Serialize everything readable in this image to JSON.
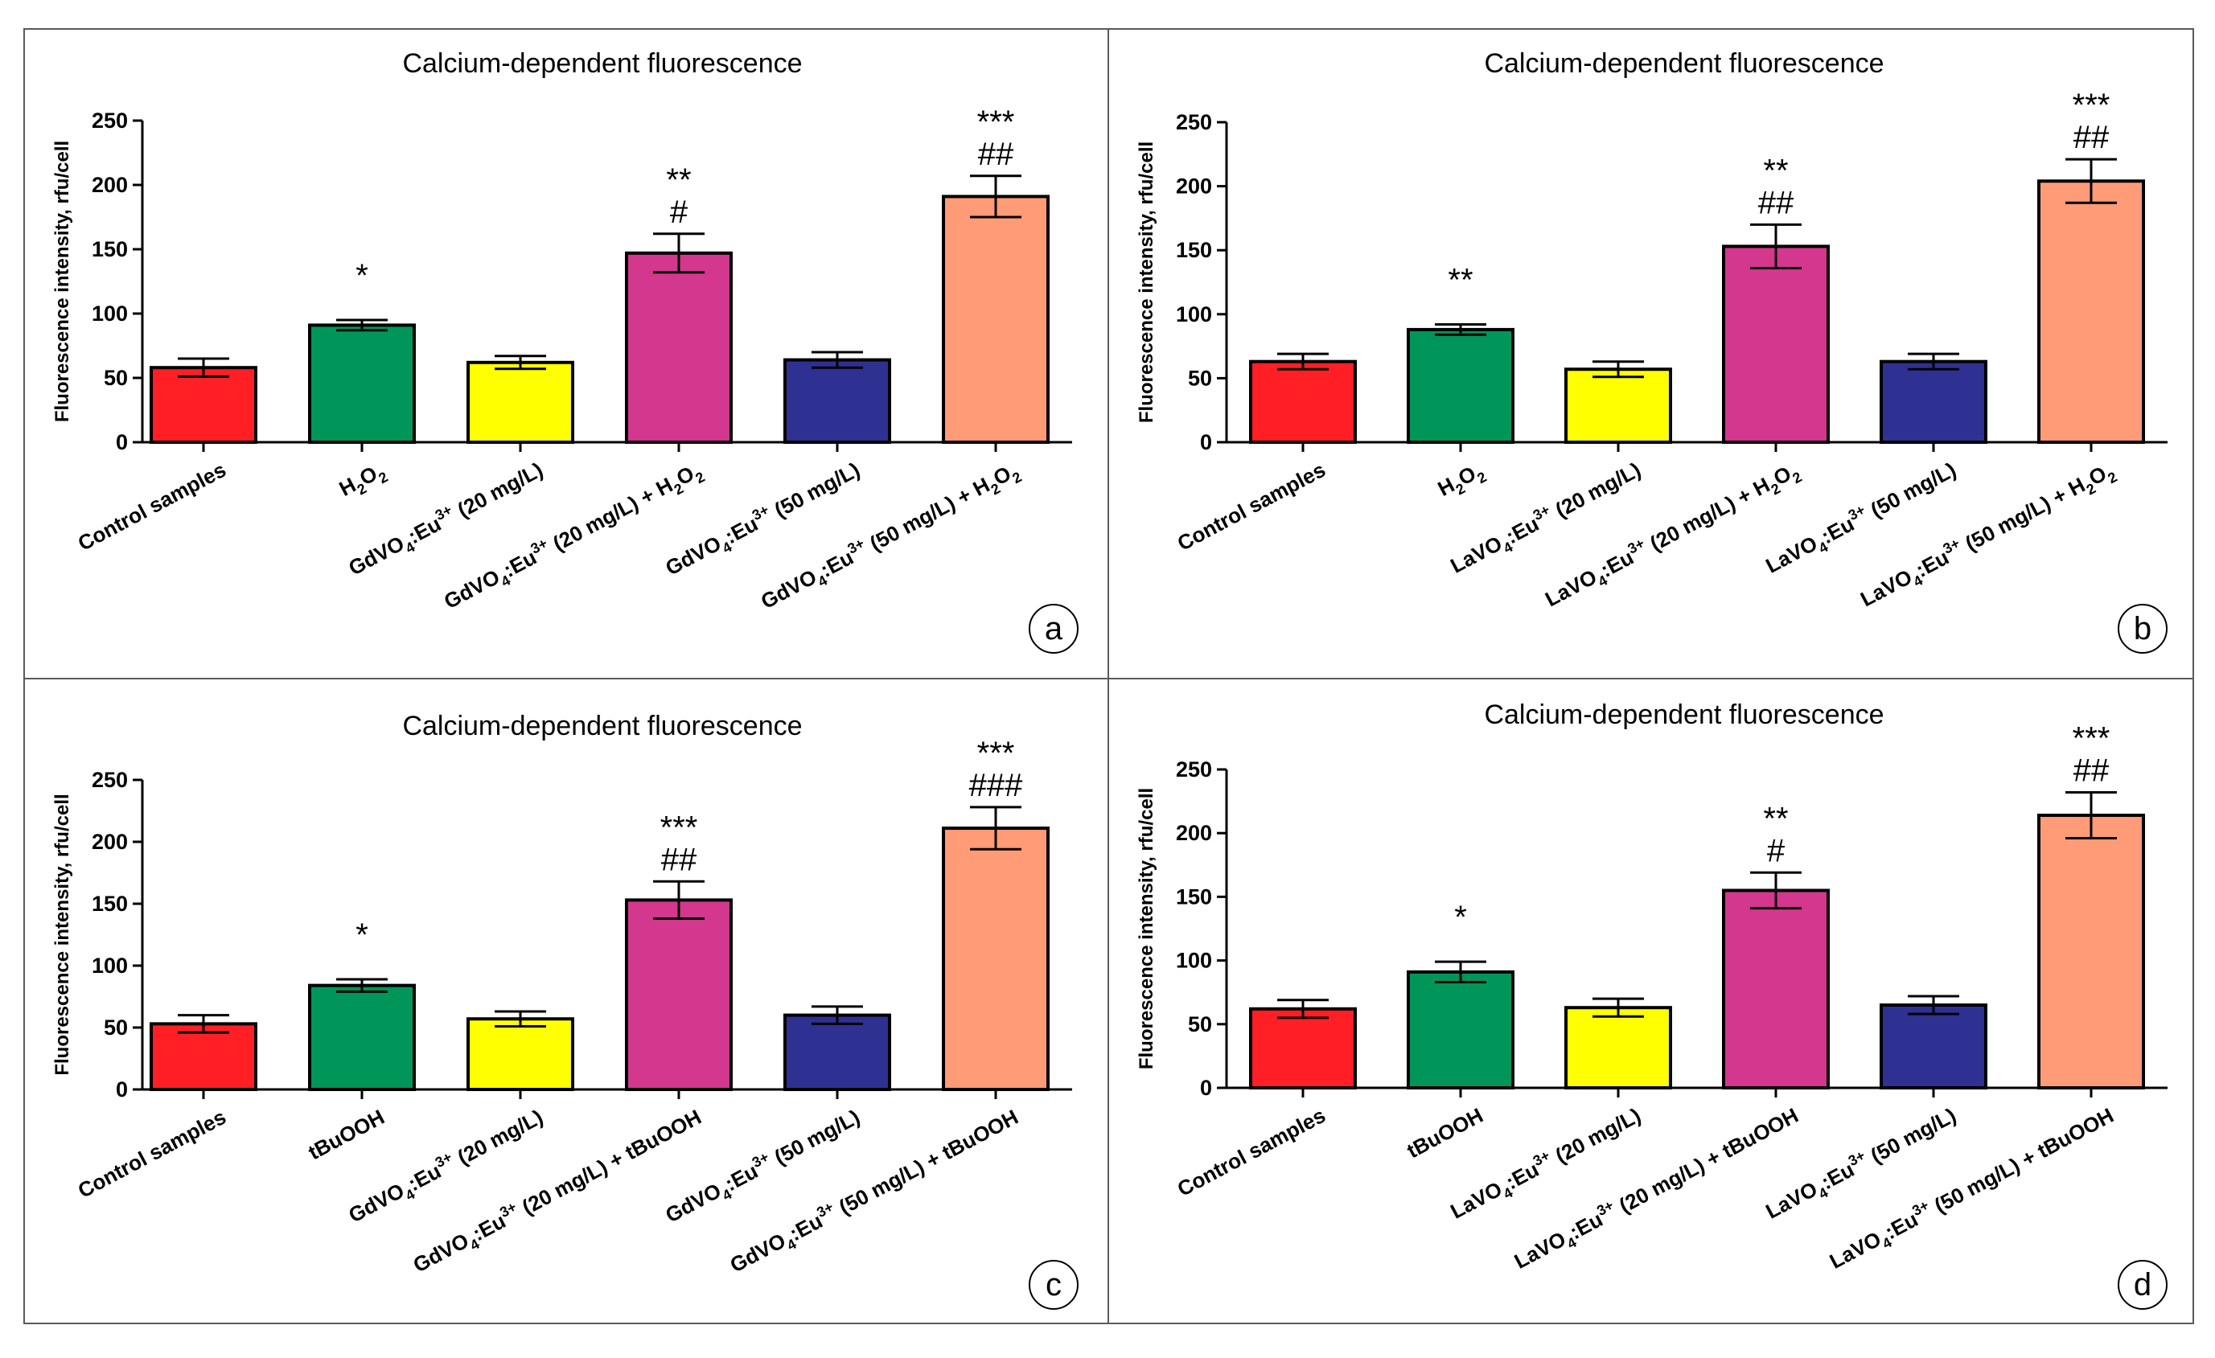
{
  "figure": {
    "border_color": "#5a5a5a",
    "bar_colors": [
      "#ff1f24",
      "#00965a",
      "#ffff00",
      "#d3378e",
      "#2e3192",
      "#ff9b77"
    ],
    "axis_color": "#000000"
  },
  "chart_data": [
    {
      "type": "bar",
      "panel": "a",
      "title": "Calcium-dependent fluorescence",
      "ylabel": "Fluorescence intensity, rfu/cell",
      "ylim": [
        0,
        250
      ],
      "yticks": [
        0,
        50,
        100,
        150,
        200,
        250
      ],
      "categories": [
        {
          "base": "Control samples",
          "sup": "",
          "suffix": ""
        },
        {
          "base": "H",
          "sub": "2",
          "tail": "O",
          "sub2": "2"
        },
        {
          "base": "GdVO",
          "sub": "4",
          "mid": ":Eu",
          "sup": "3+",
          "suffix": " (20 mg/L)"
        },
        {
          "base": "GdVO",
          "sub": "4",
          "mid": ":Eu",
          "sup": "3+",
          "suffix": " (20 mg/L) + H",
          "sub3": "2",
          "tail": "O",
          "sub2": "2"
        },
        {
          "base": "GdVO",
          "sub": "4",
          "mid": ":Eu",
          "sup": "3+",
          "suffix": " (50 mg/L)"
        },
        {
          "base": "GdVO",
          "sub": "4",
          "mid": ":Eu",
          "sup": "3+",
          "suffix": " (50 mg/L) + H",
          "sub3": "2",
          "tail": "O",
          "sub2": "2"
        }
      ],
      "values": [
        58,
        91,
        62,
        147,
        64,
        191
      ],
      "errors": [
        7,
        4,
        5,
        15,
        6,
        16
      ],
      "stars": [
        "",
        "*",
        "",
        "**",
        "",
        "***"
      ],
      "hashes": [
        "",
        "",
        "",
        "#",
        "",
        "##"
      ]
    },
    {
      "type": "bar",
      "panel": "b",
      "title": "Calcium-dependent fluorescence",
      "ylabel": "Fluorescence intensity, rfu/cell",
      "ylim": [
        0,
        250
      ],
      "yticks": [
        0,
        50,
        100,
        150,
        200,
        250
      ],
      "categories": [
        {
          "base": "Control samples"
        },
        {
          "base": "H",
          "sub": "2",
          "tail": "O",
          "sub2": "2"
        },
        {
          "base": "LaVO",
          "sub": "4",
          "mid": ":Eu",
          "sup": "3+",
          "suffix": " (20 mg/L)"
        },
        {
          "base": "LaVO",
          "sub": "4",
          "mid": ":Eu",
          "sup": "3+",
          "suffix": " (20 mg/L) + H",
          "sub3": "2",
          "tail": "O",
          "sub2": "2"
        },
        {
          "base": "LaVO",
          "sub": "4",
          "mid": ":Eu",
          "sup": "3+",
          "suffix": " (50 mg/L)"
        },
        {
          "base": "LaVO",
          "sub": "4",
          "mid": ":Eu",
          "sup": "3+",
          "suffix": " (50 mg/L) + H",
          "sub3": "2",
          "tail": "O",
          "sub2": "2"
        }
      ],
      "values": [
        63,
        88,
        57,
        153,
        63,
        204
      ],
      "errors": [
        6,
        4,
        6,
        17,
        6,
        17
      ],
      "stars": [
        "",
        "**",
        "",
        "**",
        "",
        "***"
      ],
      "hashes": [
        "",
        "",
        "",
        "##",
        "",
        "##"
      ]
    },
    {
      "type": "bar",
      "panel": "c",
      "title": "Calcium-dependent fluorescence",
      "ylabel": "Fluorescence intensity, rfu/cell",
      "ylim": [
        0,
        250
      ],
      "yticks": [
        0,
        50,
        100,
        150,
        200,
        250
      ],
      "categories": [
        {
          "base": "Control samples"
        },
        {
          "base": "tBuOOH"
        },
        {
          "base": "GdVO",
          "sub": "4",
          "mid": ":Eu",
          "sup": "3+",
          "suffix": " (20 mg/L)"
        },
        {
          "base": "GdVO",
          "sub": "4",
          "mid": ":Eu",
          "sup": "3+",
          "suffix": " (20 mg/L) + tBuOOH"
        },
        {
          "base": "GdVO",
          "sub": "4",
          "mid": ":Eu",
          "sup": "3+",
          "suffix": " (50 mg/L)"
        },
        {
          "base": "GdVO",
          "sub": "4",
          "mid": ":Eu",
          "sup": "3+",
          "suffix": " (50 mg/L) + tBuOOH"
        }
      ],
      "values": [
        53,
        84,
        57,
        153,
        60,
        211
      ],
      "errors": [
        7,
        5,
        6,
        15,
        7,
        17
      ],
      "stars": [
        "",
        "*",
        "",
        "***",
        "",
        "***"
      ],
      "hashes": [
        "",
        "",
        "",
        "##",
        "",
        "###"
      ]
    },
    {
      "type": "bar",
      "panel": "d",
      "title": "Calcium-dependent fluorescence",
      "ylabel": "Fluorescence intensity, rfu/cell",
      "ylim": [
        0,
        250
      ],
      "yticks": [
        0,
        50,
        100,
        150,
        200,
        250
      ],
      "categories": [
        {
          "base": "Control samples"
        },
        {
          "base": "tBuOOH"
        },
        {
          "base": "LaVO",
          "sub": "4",
          "mid": ":Eu",
          "sup": "3+",
          "suffix": " (20 mg/L)"
        },
        {
          "base": "LaVO",
          "sub": "4",
          "mid": ":Eu",
          "sup": "3+",
          "suffix": " (20 mg/L) + tBuOOH"
        },
        {
          "base": "LaVO",
          "sub": "4",
          "mid": ":Eu",
          "sup": "3+",
          "suffix": " (50 mg/L)"
        },
        {
          "base": "LaVO",
          "sub": "4",
          "mid": ":Eu",
          "sup": "3+",
          "suffix": " (50 mg/L) + tBuOOH"
        }
      ],
      "values": [
        62,
        91,
        63,
        155,
        65,
        214
      ],
      "errors": [
        7,
        8,
        7,
        14,
        7,
        18
      ],
      "stars": [
        "",
        "*",
        "",
        "**",
        "",
        "***"
      ],
      "hashes": [
        "",
        "",
        "",
        "#",
        "",
        "##"
      ]
    }
  ]
}
